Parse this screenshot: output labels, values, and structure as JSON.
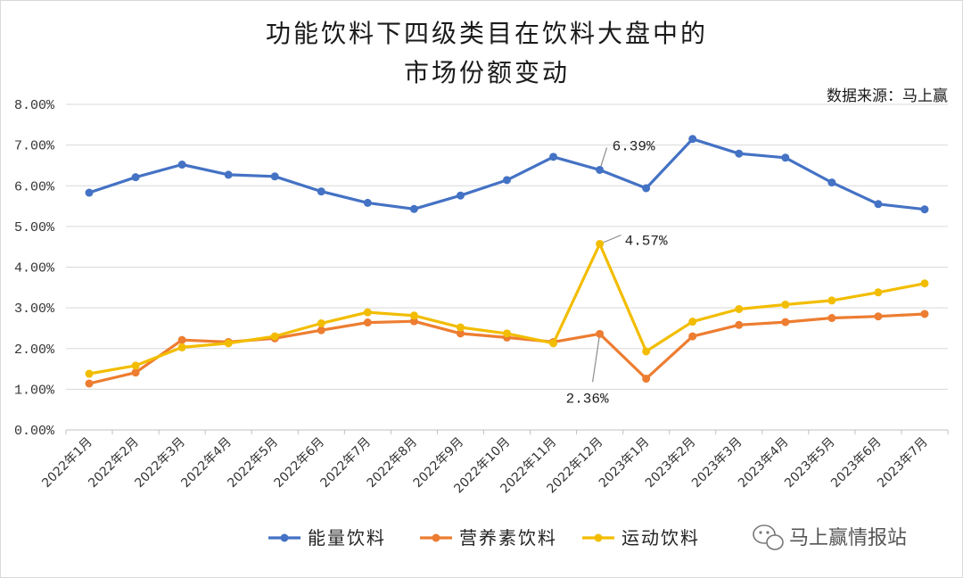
{
  "chart_data": {
    "type": "line",
    "title_lines": [
      "功能饮料下四级类目在饮料大盘中的",
      "市场份额变动"
    ],
    "source": "数据来源：马上赢",
    "categories": [
      "2022年1月",
      "2022年2月",
      "2022年3月",
      "2022年4月",
      "2022年5月",
      "2022年6月",
      "2022年7月",
      "2022年8月",
      "2022年9月",
      "2022年10月",
      "2022年11月",
      "2022年12月",
      "2023年1月",
      "2023年2月",
      "2023年3月",
      "2023年4月",
      "2023年5月",
      "2023年6月",
      "2023年7月"
    ],
    "ylim": [
      0,
      8
    ],
    "yticks": [
      "0.00%",
      "1.00%",
      "2.00%",
      "3.00%",
      "4.00%",
      "5.00%",
      "6.00%",
      "7.00%",
      "8.00%"
    ],
    "grid": true,
    "legend_position": "bottom",
    "series": [
      {
        "name": "能量饮料",
        "color": "#4472c4",
        "values": [
          5.83,
          6.21,
          6.52,
          6.27,
          6.23,
          5.86,
          5.58,
          5.43,
          5.76,
          6.14,
          6.71,
          6.39,
          5.94,
          7.15,
          6.79,
          6.69,
          6.08,
          5.55,
          5.42
        ]
      },
      {
        "name": "营养素饮料",
        "color": "#ed7d31",
        "values": [
          1.14,
          1.41,
          2.21,
          2.16,
          2.25,
          2.45,
          2.64,
          2.67,
          2.37,
          2.27,
          2.16,
          2.36,
          1.26,
          2.3,
          2.58,
          2.65,
          2.75,
          2.79,
          2.85
        ]
      },
      {
        "name": "运动饮料",
        "color": "#f2bd00",
        "values": [
          1.38,
          1.58,
          2.03,
          2.13,
          2.3,
          2.62,
          2.89,
          2.81,
          2.52,
          2.37,
          2.13,
          4.57,
          1.93,
          2.66,
          2.97,
          3.08,
          3.18,
          3.38,
          3.6
        ]
      }
    ],
    "annotations": [
      {
        "text": "6.39%",
        "series": 0,
        "index": 11
      },
      {
        "text": "4.57%",
        "series": 2,
        "index": 11
      },
      {
        "text": "2.36%",
        "series": 1,
        "index": 11
      }
    ]
  },
  "watermark": {
    "text": "马上赢情报站",
    "icon": "wechat-icon"
  }
}
